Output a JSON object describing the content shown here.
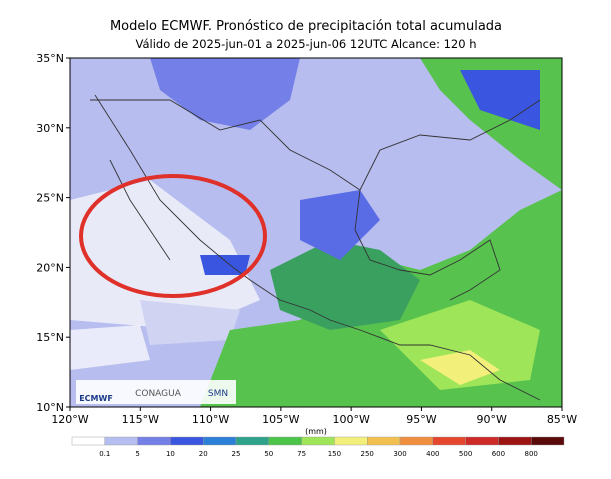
{
  "map": {
    "title": "Modelo ECMWF. Pronóstico de precipitación total acumulada",
    "subtitle": "Válido de 2025-jun-01 a 2025-jun-06 12UTC   Alcance: 120 h",
    "lat_labels": [
      "35°N",
      "30°N",
      "25°N",
      "20°N",
      "15°N",
      "10°N"
    ],
    "lon_labels": [
      "120°W",
      "115°W",
      "110°W",
      "105°W",
      "100°W",
      "95°W",
      "90°W",
      "85°W"
    ],
    "logos": [
      "ECMWF",
      "CONAGUA",
      "SMN"
    ],
    "colorbar": {
      "unit": "(mm)",
      "labels": [
        0.1,
        5,
        10,
        20,
        25,
        50,
        75,
        150,
        250,
        300,
        400,
        500,
        600,
        800
      ],
      "colors": [
        "#ffffff",
        "#b4bef0",
        "#7480e8",
        "#3a56e0",
        "#2b7fd6",
        "#2fa38a",
        "#4cc44a",
        "#9ee55a",
        "#f2f07a",
        "#f2c050",
        "#ee8e3e",
        "#e4462e",
        "#cf2a2a",
        "#9c1414",
        "#5a0a0a"
      ]
    }
  }
}
